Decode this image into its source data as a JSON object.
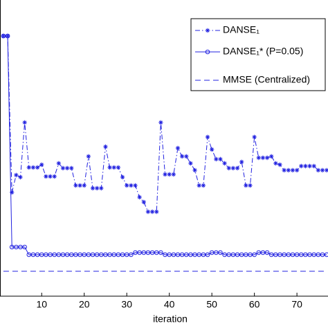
{
  "chart_data": {
    "type": "line",
    "x_label": "iteration",
    "x": [
      1,
      2,
      3,
      4,
      5,
      6,
      7,
      8,
      9,
      10,
      11,
      12,
      13,
      14,
      15,
      16,
      17,
      18,
      19,
      20,
      21,
      22,
      23,
      24,
      25,
      26,
      27,
      28,
      29,
      30,
      31,
      32,
      33,
      34,
      35,
      36,
      37,
      38,
      39,
      40,
      41,
      42,
      43,
      44,
      45,
      46,
      47,
      48,
      49,
      50,
      51,
      52,
      53,
      54,
      55,
      56,
      57,
      58,
      59,
      60,
      61,
      62,
      63,
      64,
      65,
      66,
      67,
      68,
      69,
      70,
      71,
      72,
      73,
      74,
      75,
      76,
      77
    ],
    "series": [
      {
        "name": "DANSE₁",
        "color": "#2020e0",
        "linestyle": "dashdot",
        "marker": "star",
        "values": [
          37.6,
          37.6,
          15.0,
          17.5,
          17.2,
          25.1,
          18.6,
          18.6,
          18.6,
          19.0,
          17.3,
          17.3,
          17.3,
          19.2,
          18.5,
          18.5,
          18.5,
          16.0,
          16.0,
          16.0,
          20.2,
          15.6,
          15.6,
          15.6,
          21.6,
          18.6,
          18.6,
          18.6,
          17.2,
          16.0,
          16.0,
          16.0,
          14.3,
          13.6,
          12.2,
          12.2,
          12.2,
          25.1,
          17.6,
          17.6,
          17.6,
          21.4,
          20.2,
          20.2,
          19.2,
          18.2,
          16.0,
          16.0,
          23.0,
          21.2,
          19.8,
          19.8,
          19.2,
          18.5,
          18.5,
          18.5,
          19.4,
          16.0,
          16.0,
          23.0,
          20.0,
          20.0,
          20.0,
          20.2,
          19.2,
          19.0,
          18.2,
          18.2,
          18.2,
          18.2,
          18.8,
          18.8,
          18.8,
          18.8,
          18.2,
          18.2,
          18.2
        ]
      },
      {
        "name": "DANSE₁* (P=0.05)",
        "color": "#2020e0",
        "linestyle": "solid",
        "marker": "circle",
        "values": [
          37.6,
          37.6,
          7.1,
          7.1,
          7.1,
          7.1,
          6.0,
          6.0,
          6.0,
          6.0,
          6.0,
          6.0,
          6.0,
          6.0,
          6.0,
          6.0,
          6.0,
          6.0,
          6.0,
          6.0,
          6.0,
          6.0,
          6.0,
          6.0,
          6.0,
          6.0,
          6.0,
          6.0,
          6.0,
          6.0,
          6.0,
          6.3,
          6.3,
          6.3,
          6.3,
          6.3,
          6.3,
          6.3,
          6.0,
          6.0,
          6.0,
          6.0,
          6.0,
          6.0,
          6.0,
          6.0,
          6.0,
          6.0,
          6.0,
          6.3,
          6.3,
          6.3,
          6.0,
          6.0,
          6.0,
          6.0,
          6.0,
          6.0,
          6.0,
          6.0,
          6.3,
          6.3,
          6.3,
          6.0,
          6.0,
          6.0,
          6.0,
          6.0,
          6.0,
          6.0,
          6.0,
          6.0,
          6.0,
          6.0,
          6.0,
          6.0,
          6.0
        ]
      },
      {
        "name": "MMSE (Centralized)",
        "color": "#2020e0",
        "linestyle": "dashed",
        "marker": "none",
        "values": [
          3.6,
          3.6,
          3.6,
          3.6,
          3.6,
          3.6,
          3.6,
          3.6,
          3.6,
          3.6,
          3.6,
          3.6,
          3.6,
          3.6,
          3.6,
          3.6,
          3.6,
          3.6,
          3.6,
          3.6,
          3.6,
          3.6,
          3.6,
          3.6,
          3.6,
          3.6,
          3.6,
          3.6,
          3.6,
          3.6,
          3.6,
          3.6,
          3.6,
          3.6,
          3.6,
          3.6,
          3.6,
          3.6,
          3.6,
          3.6,
          3.6,
          3.6,
          3.6,
          3.6,
          3.6,
          3.6,
          3.6,
          3.6,
          3.6,
          3.6,
          3.6,
          3.6,
          3.6,
          3.6,
          3.6,
          3.6,
          3.6,
          3.6,
          3.6,
          3.6,
          3.6,
          3.6,
          3.6,
          3.6,
          3.6,
          3.6,
          3.6,
          3.6,
          3.6,
          3.6,
          3.6,
          3.6,
          3.6,
          3.6,
          3.6,
          3.6,
          3.6
        ]
      }
    ],
    "xlim": [
      0.2,
      77.3
    ],
    "ylim": [
      0,
      42.8
    ],
    "xticks": [
      10,
      20,
      30,
      40,
      50,
      60,
      70
    ],
    "legend": "upper right"
  }
}
